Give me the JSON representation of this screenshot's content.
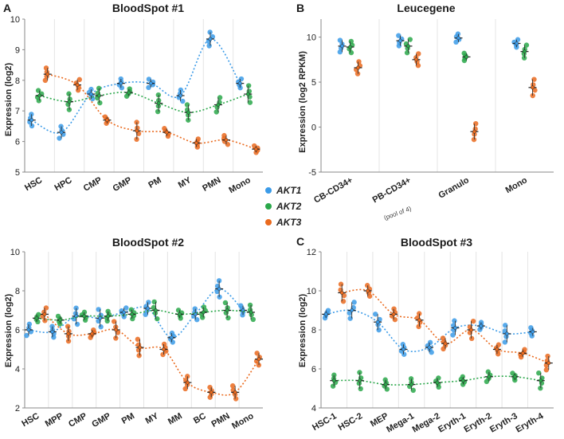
{
  "colors": {
    "AKT1": "#3b9be8",
    "AKT2": "#2aa84a",
    "AKT3": "#ea6a1e"
  },
  "legend": {
    "items": [
      "AKT1",
      "AKT2",
      "AKT3"
    ]
  },
  "chart_data": [
    {
      "id": "A",
      "panel_label": "A",
      "type": "scatter",
      "title": "BloodSpot #1",
      "xlabel": "",
      "ylabel": "Expression (log2)",
      "ylim": [
        5,
        10
      ],
      "yticks": [
        "5",
        "6",
        "7",
        "8",
        "9",
        "10"
      ],
      "categories": [
        "HSC",
        "HPC",
        "CMP",
        "GMP",
        "PM",
        "MY",
        "PMN",
        "Mono"
      ],
      "series": [
        {
          "name": "AKT1",
          "values": [
            6.7,
            6.3,
            7.55,
            7.9,
            7.9,
            7.5,
            9.35,
            7.9
          ]
        },
        {
          "name": "AKT2",
          "values": [
            7.5,
            7.3,
            7.5,
            7.6,
            7.25,
            6.95,
            7.2,
            7.55
          ]
        },
        {
          "name": "AKT3",
          "values": [
            8.2,
            7.85,
            6.7,
            6.35,
            6.3,
            5.95,
            6.05,
            5.75
          ]
        }
      ]
    },
    {
      "id": "B",
      "panel_label": "B",
      "type": "scatter",
      "title": "Leucegene",
      "xlabel": "",
      "ylabel": "Expression (log2 RPKM)",
      "ylim": [
        -5,
        12
      ],
      "yticks": [
        "-5",
        "0",
        "5",
        "10"
      ],
      "categories": [
        "CB-CD34+",
        "PB-CD34+",
        "Granulo",
        "Mono"
      ],
      "category_notes": [
        "",
        "(pool of 4)",
        "",
        ""
      ],
      "series": [
        {
          "name": "AKT1",
          "values": [
            9.0,
            9.6,
            9.9,
            9.3
          ]
        },
        {
          "name": "AKT2",
          "values": [
            8.9,
            9.0,
            7.8,
            8.4
          ]
        },
        {
          "name": "AKT3",
          "values": [
            6.6,
            7.5,
            -0.5,
            4.4
          ]
        }
      ]
    },
    {
      "id": "BS2",
      "panel_label": "",
      "type": "scatter",
      "title": "BloodSpot #2",
      "xlabel": "",
      "ylabel": "Expression (log2)",
      "ylim": [
        2,
        10
      ],
      "yticks": [
        "2",
        "4",
        "6",
        "8",
        "10"
      ],
      "categories": [
        "HSC",
        "MPP",
        "CMP",
        "GMP",
        "PM",
        "MY",
        "MM",
        "BC",
        "PMN",
        "Mono"
      ],
      "series": [
        {
          "name": "AKT1",
          "values": [
            6.0,
            5.9,
            6.7,
            6.6,
            6.9,
            7.1,
            5.6,
            6.8,
            8.1,
            7.0
          ]
        },
        {
          "name": "AKT2",
          "values": [
            6.6,
            6.5,
            6.7,
            6.7,
            6.8,
            7.0,
            6.8,
            6.9,
            7.0,
            6.9
          ]
        },
        {
          "name": "AKT3",
          "values": [
            6.8,
            5.8,
            5.8,
            6.0,
            5.1,
            5.0,
            3.3,
            2.8,
            2.8,
            4.5
          ]
        }
      ]
    },
    {
      "id": "C",
      "panel_label": "C",
      "type": "scatter",
      "title": "BloodSpot #3",
      "xlabel": "",
      "ylabel": "Expression (log2)",
      "ylim": [
        4,
        12
      ],
      "yticks": [
        "4",
        "6",
        "8",
        "10",
        "12"
      ],
      "categories": [
        "HSC-1",
        "HSC-2",
        "MEP",
        "Mega-1",
        "Mega-2",
        "Eryth-1",
        "Eryth-2",
        "Eryth-3",
        "Eryth-4"
      ],
      "series": [
        {
          "name": "AKT1",
          "values": [
            8.8,
            9.0,
            8.4,
            7.0,
            7.1,
            8.1,
            8.2,
            7.8,
            7.9
          ]
        },
        {
          "name": "AKT2",
          "values": [
            5.4,
            5.4,
            5.2,
            5.2,
            5.3,
            5.4,
            5.6,
            5.6,
            5.4
          ]
        },
        {
          "name": "AKT3",
          "values": [
            9.9,
            10.0,
            8.8,
            8.5,
            7.3,
            8.0,
            7.0,
            6.8,
            6.3
          ]
        }
      ]
    }
  ]
}
